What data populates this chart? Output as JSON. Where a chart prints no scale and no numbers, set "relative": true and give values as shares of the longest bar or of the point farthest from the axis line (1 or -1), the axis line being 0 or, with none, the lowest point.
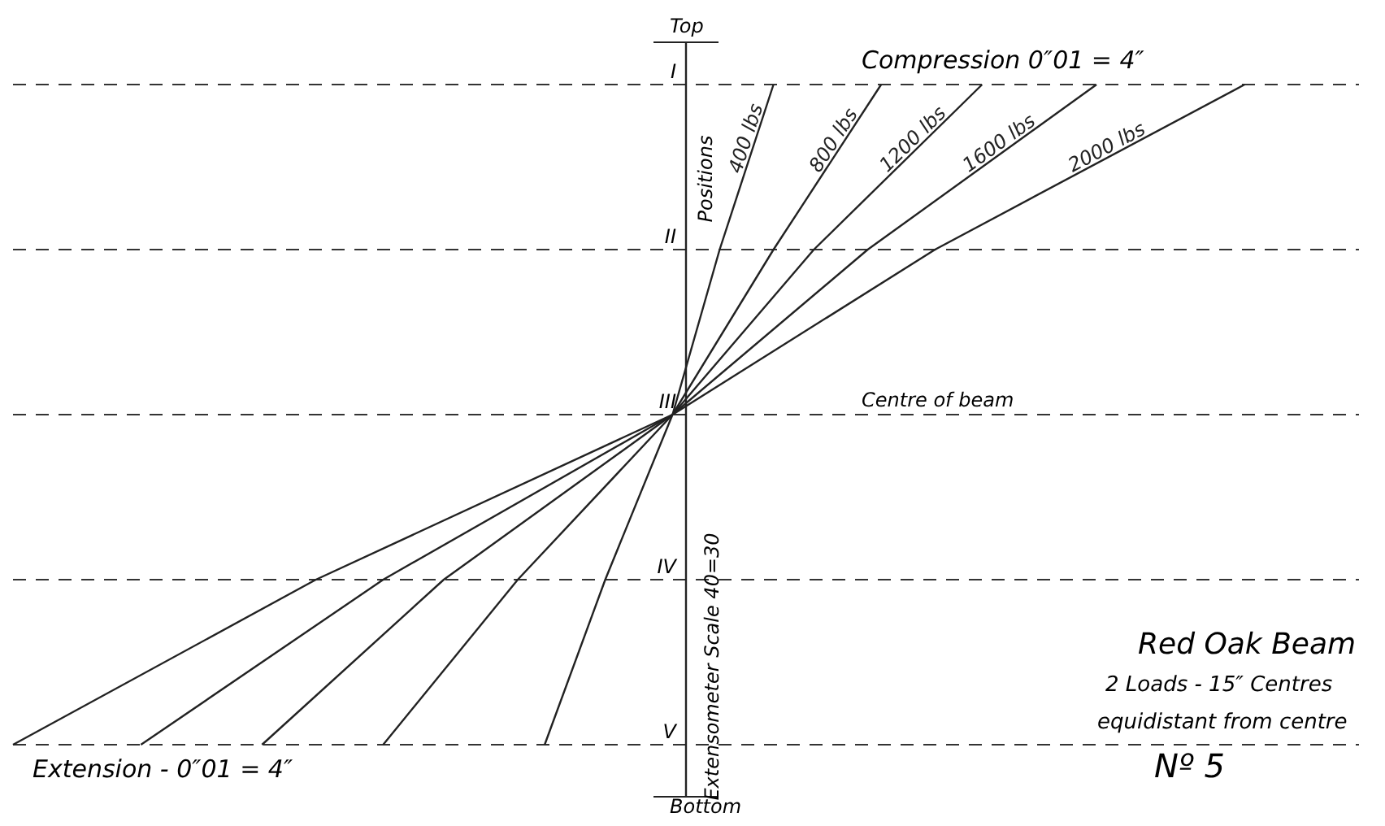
{
  "chart_data": {
    "type": "line",
    "orientation": "horizontal",
    "relative": true,
    "categories": [
      "I",
      "II",
      "III",
      "IV",
      "V"
    ],
    "series": [
      {
        "name": "400 lbs",
        "color": "#222222",
        "values": [
          0.13,
          0.05,
          -0.02,
          -0.12,
          -0.21
        ]
      },
      {
        "name": "800 lbs",
        "color": "#222222",
        "values": [
          0.29,
          0.13,
          -0.02,
          -0.25,
          -0.45
        ]
      },
      {
        "name": "1200 lbs",
        "color": "#222222",
        "values": [
          0.44,
          0.19,
          -0.02,
          -0.36,
          -0.63
        ]
      },
      {
        "name": "1600 lbs",
        "color": "#222222",
        "values": [
          0.61,
          0.27,
          -0.02,
          -0.45,
          -0.81
        ]
      },
      {
        "name": "2000 lbs",
        "color": "#222222",
        "values": [
          0.83,
          0.37,
          -0.02,
          -0.55,
          -1
        ]
      }
    ],
    "annotations": [
      "Top",
      "Bottom",
      "Compression 0″01 = 4″",
      "Extension - 0″01 = 4″",
      "Centre of beam",
      "Positions",
      "Extensometer Scale 40=30",
      "Red Oak Beam",
      "2 Loads - 15″ Centres",
      "equidistant from centre",
      "Nº 5"
    ],
    "grid": "y",
    "marker": "none",
    "line_style": "solid"
  }
}
